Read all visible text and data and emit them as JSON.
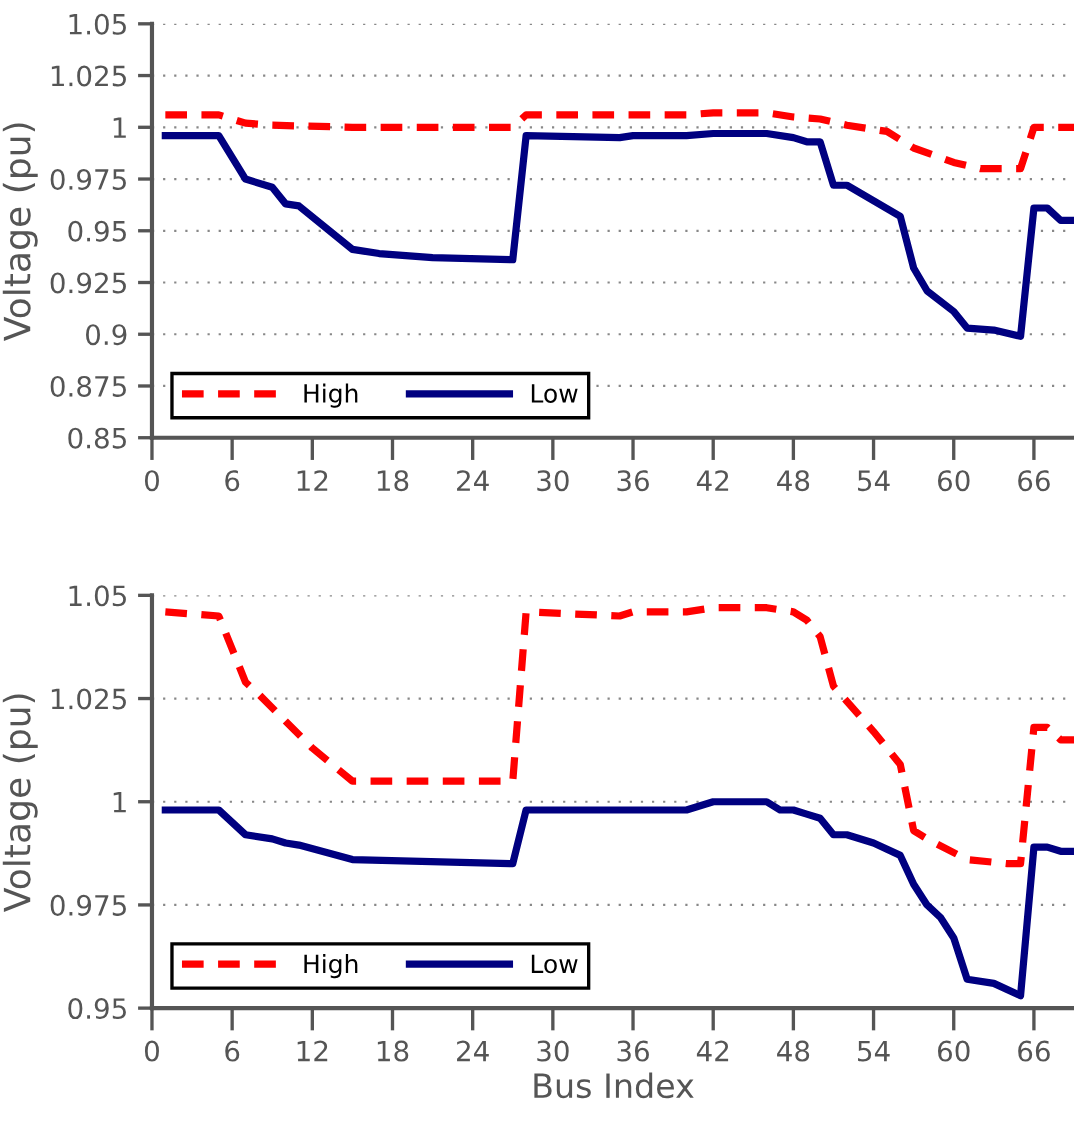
{
  "chart_data": [
    {
      "type": "line",
      "ylabel": "Voltage (pu)",
      "xlim": [
        0,
        69
      ],
      "xticks": [
        0,
        6,
        12,
        18,
        24,
        30,
        36,
        42,
        48,
        54,
        60,
        66
      ],
      "ylim": [
        0.85,
        1.05
      ],
      "yticks": [
        0.85,
        0.875,
        0.9,
        0.925,
        0.95,
        0.975,
        1,
        1.025,
        1.05
      ],
      "grid": "y",
      "legend": "bottom left",
      "marker": "none",
      "series": [
        {
          "name": "High",
          "color": "#ff0000",
          "line_style": "dashed",
          "x": [
            1,
            5,
            7,
            9,
            15,
            27,
            28,
            40,
            42,
            46,
            48,
            50,
            52,
            55,
            57,
            60,
            62,
            65,
            66,
            69
          ],
          "values": [
            1.006,
            1.006,
            1.002,
            1.001,
            1.0,
            1.0,
            1.006,
            1.006,
            1.007,
            1.007,
            1.005,
            1.004,
            1.001,
            0.998,
            0.99,
            0.983,
            0.98,
            0.98,
            1.0,
            1.0
          ]
        },
        {
          "name": "Low",
          "color": "#000080",
          "line_style": "solid",
          "x": [
            1,
            5,
            7,
            9,
            10,
            11,
            15,
            17,
            21,
            27,
            28,
            35,
            36,
            40,
            42,
            46,
            48,
            49,
            50,
            51,
            52,
            56,
            57,
            58,
            60,
            61,
            63,
            65,
            66,
            67,
            68,
            69
          ],
          "values": [
            0.996,
            0.996,
            0.975,
            0.971,
            0.963,
            0.962,
            0.941,
            0.939,
            0.937,
            0.936,
            0.996,
            0.995,
            0.996,
            0.996,
            0.997,
            0.997,
            0.995,
            0.993,
            0.993,
            0.972,
            0.972,
            0.957,
            0.932,
            0.921,
            0.911,
            0.903,
            0.902,
            0.899,
            0.961,
            0.961,
            0.955,
            0.955
          ]
        }
      ]
    },
    {
      "type": "line",
      "xlabel": "Bus Index",
      "ylabel": "Voltage (pu)",
      "xlim": [
        0,
        69
      ],
      "xticks": [
        0,
        6,
        12,
        18,
        24,
        30,
        36,
        42,
        48,
        54,
        60,
        66
      ],
      "ylim": [
        0.95,
        1.05
      ],
      "yticks": [
        0.95,
        0.975,
        1,
        1.025,
        1.05
      ],
      "grid": "y",
      "legend": "bottom left",
      "marker": "none",
      "series": [
        {
          "name": "High",
          "color": "#ff0000",
          "line_style": "dashed",
          "x": [
            1,
            5,
            7,
            8,
            12,
            15,
            27,
            28,
            35,
            36,
            40,
            42,
            46,
            48,
            49,
            50,
            51,
            54,
            56,
            57,
            58,
            61,
            64,
            65,
            66,
            67,
            68,
            69
          ],
          "values": [
            1.046,
            1.045,
            1.029,
            1.026,
            1.013,
            1.005,
            1.005,
            1.046,
            1.045,
            1.046,
            1.046,
            1.047,
            1.047,
            1.046,
            1.044,
            1.04,
            1.028,
            1.017,
            1.009,
            0.993,
            0.991,
            0.986,
            0.985,
            0.985,
            1.018,
            1.018,
            1.015,
            1.015
          ]
        },
        {
          "name": "Low",
          "color": "#000080",
          "line_style": "solid",
          "x": [
            1,
            5,
            7,
            9,
            10,
            11,
            15,
            27,
            28,
            35,
            36,
            40,
            42,
            46,
            47,
            48,
            49,
            50,
            51,
            52,
            54,
            56,
            57,
            58,
            59,
            60,
            61,
            63,
            65,
            66,
            67,
            68,
            69
          ],
          "values": [
            0.998,
            0.998,
            0.992,
            0.991,
            0.99,
            0.9895,
            0.986,
            0.985,
            0.998,
            0.998,
            0.998,
            0.998,
            1.0,
            1.0,
            0.998,
            0.998,
            0.997,
            0.996,
            0.992,
            0.992,
            0.99,
            0.987,
            0.98,
            0.975,
            0.972,
            0.967,
            0.957,
            0.956,
            0.953,
            0.989,
            0.989,
            0.988,
            0.988
          ]
        }
      ]
    }
  ]
}
